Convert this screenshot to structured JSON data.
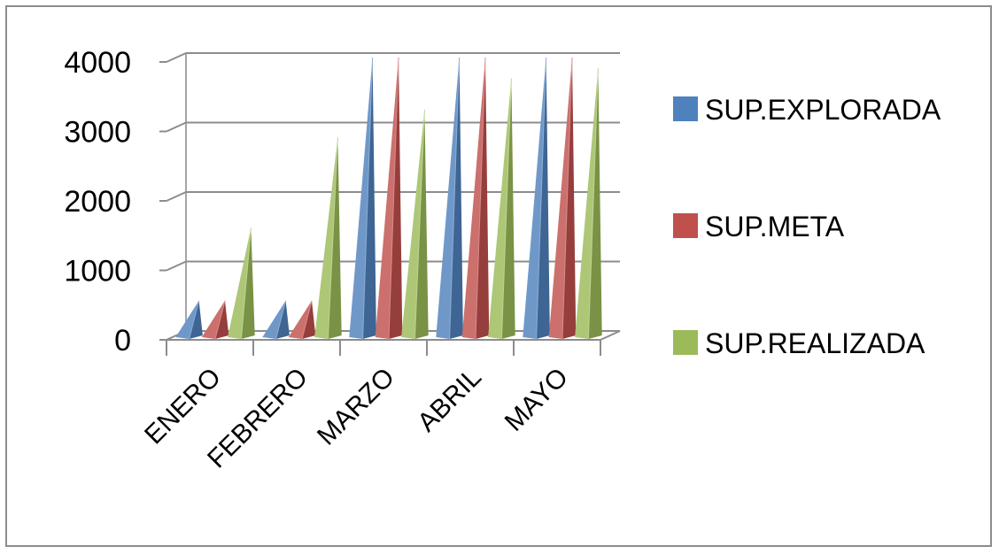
{
  "chart_data": {
    "type": "bar",
    "categories": [
      "ENERO",
      "FEBRERO",
      "MARZO",
      "ABRIL",
      "MAYO"
    ],
    "series": [
      {
        "name": "SUP.EXPLORADA",
        "values": [
          500,
          500,
          4000,
          4000,
          4000
        ],
        "color": "#4f81bd"
      },
      {
        "name": "SUP.META",
        "values": [
          500,
          500,
          4000,
          4000,
          4000
        ],
        "color": "#c0504d"
      },
      {
        "name": "SUP.REALIZADA",
        "values": [
          1550,
          2850,
          3250,
          3700,
          3850
        ],
        "color": "#9bbb59"
      }
    ],
    "yticks": [
      "0",
      "1000",
      "2000",
      "3000",
      "4000"
    ],
    "ylim": [
      0,
      4000
    ],
    "title": "",
    "xlabel": "",
    "ylabel": "",
    "grid": true,
    "legend_position": "right",
    "bar_shape": "pyramid (3-D)"
  }
}
